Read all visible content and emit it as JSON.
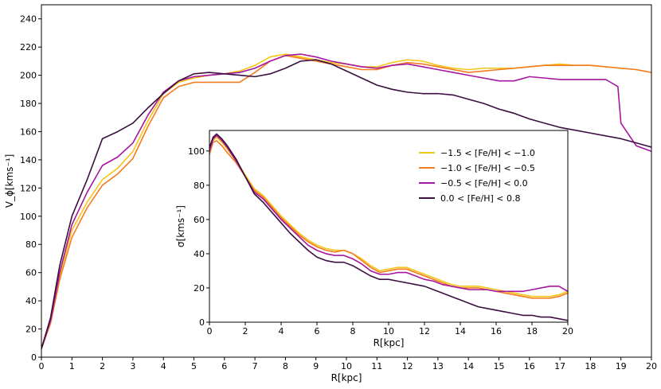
{
  "chart_data": [
    {
      "type": "line",
      "name": "main-rotation-curve",
      "xlabel": "R[kpc]",
      "ylabel": "V_ϕ[kms⁻¹]",
      "xlim": [
        0,
        20
      ],
      "ylim": [
        0,
        250
      ],
      "xticks": [
        0,
        1,
        2,
        3,
        4,
        5,
        6,
        7,
        8,
        9,
        10,
        11,
        12,
        13,
        14,
        15,
        16,
        17,
        18,
        19,
        20
      ],
      "yticks": [
        0,
        20,
        40,
        60,
        80,
        100,
        120,
        140,
        160,
        180,
        200,
        220,
        240
      ],
      "series": [
        {
          "name": "−1.5 < [Fe/H] < −1.0",
          "color": "#f5c518",
          "x": [
            0,
            0.3,
            0.6,
            1.0,
            1.5,
            2.0,
            2.5,
            3.0,
            3.5,
            4.0,
            4.5,
            5.0,
            5.5,
            6.0,
            6.5,
            7.0,
            7.5,
            8.0,
            8.5,
            9.0,
            9.5,
            10.0,
            10.5,
            11.0,
            11.5,
            12.0,
            12.5,
            13.0,
            13.5,
            14.0,
            14.5,
            15.0,
            15.5,
            16.0,
            16.5,
            17.0,
            17.5,
            18.0,
            18.5,
            19.0,
            19.5,
            20.0
          ],
          "y": [
            6,
            25,
            58,
            90,
            110,
            126,
            134,
            146,
            168,
            187,
            195,
            198,
            200,
            201,
            203,
            207,
            213,
            215,
            213,
            211,
            209,
            208,
            206,
            206,
            209,
            211,
            210,
            207,
            205,
            204,
            205,
            205,
            205,
            206,
            207,
            208,
            207,
            207,
            206,
            205,
            204,
            202
          ]
        },
        {
          "name": "−1.0 < [Fe/H] < −0.5",
          "color": "#f47c20",
          "x": [
            0,
            0.3,
            0.6,
            1.0,
            1.5,
            2.0,
            2.5,
            3.0,
            3.5,
            4.0,
            4.5,
            5.0,
            5.5,
            6.0,
            6.5,
            7.0,
            7.5,
            8.0,
            8.5,
            9.0,
            9.5,
            10.0,
            10.5,
            11.0,
            11.5,
            12.0,
            12.5,
            13.0,
            13.5,
            14.0,
            14.5,
            15.0,
            15.5,
            16.0,
            16.5,
            17.0,
            17.5,
            18.0,
            18.5,
            19.0,
            19.5,
            20.0
          ],
          "y": [
            6,
            24,
            55,
            85,
            106,
            122,
            130,
            141,
            164,
            184,
            192,
            195,
            195,
            195,
            195,
            202,
            210,
            214,
            212,
            210,
            208,
            206,
            204,
            204,
            207,
            209,
            208,
            206,
            204,
            202,
            203,
            204,
            205,
            206,
            207,
            207,
            207,
            207,
            206,
            205,
            204,
            202
          ]
        },
        {
          "name": "−0.5 < [Fe/H] < 0.0",
          "color": "#a4179e",
          "x": [
            0,
            0.3,
            0.6,
            1.0,
            1.5,
            2.0,
            2.5,
            3.0,
            3.5,
            4.0,
            4.5,
            5.0,
            5.5,
            6.0,
            6.5,
            7.0,
            7.5,
            8.0,
            8.5,
            9.0,
            9.5,
            10.0,
            10.5,
            11.0,
            11.5,
            12.0,
            12.5,
            13.0,
            13.5,
            14.0,
            14.5,
            15.0,
            15.5,
            16.0,
            16.5,
            17.0,
            17.5,
            18.0,
            18.5,
            18.9,
            19.0,
            19.5,
            20.0
          ],
          "y": [
            6,
            26,
            60,
            94,
            117,
            136,
            142,
            152,
            172,
            188,
            196,
            199,
            200,
            201,
            202,
            205,
            210,
            214,
            215,
            213,
            210,
            208,
            206,
            205,
            207,
            208,
            206,
            204,
            202,
            200,
            198,
            196,
            196,
            199,
            198,
            197,
            197,
            197,
            197,
            192,
            166,
            150,
            146
          ]
        },
        {
          "name": "0.0 < [Fe/H] < 0.8",
          "color": "#3b0f3f",
          "x": [
            0,
            0.3,
            0.6,
            1.0,
            1.5,
            2.0,
            2.5,
            3.0,
            3.5,
            4.0,
            4.5,
            5.0,
            5.5,
            6.0,
            6.5,
            7.0,
            7.5,
            8.0,
            8.5,
            9.0,
            9.5,
            10.0,
            10.5,
            11.0,
            11.5,
            12.0,
            12.5,
            13.0,
            13.5,
            14.0,
            14.5,
            15.0,
            15.5,
            16.0,
            16.5,
            17.0,
            17.5,
            18.0,
            18.5,
            19.0,
            19.5,
            20.0
          ],
          "y": [
            6,
            28,
            65,
            100,
            126,
            155,
            160,
            166,
            177,
            187,
            196,
            201,
            202,
            201,
            200,
            199,
            201,
            205,
            210,
            211,
            208,
            203,
            198,
            193,
            190,
            188,
            187,
            187,
            186,
            183,
            180,
            176,
            173,
            169,
            166,
            163,
            161,
            159,
            157,
            155,
            152,
            149
          ]
        }
      ]
    },
    {
      "type": "line",
      "name": "inset-dispersion",
      "xlabel": "R[kpc]",
      "ylabel": "σ[kms⁻¹]",
      "xlim": [
        0,
        20
      ],
      "ylim": [
        0,
        112
      ],
      "xticks": [
        0,
        2,
        4,
        6,
        8,
        10,
        12,
        14,
        16,
        18,
        20
      ],
      "yticks": [
        0,
        20,
        40,
        60,
        80,
        100
      ],
      "legend_location": "upper-right",
      "series": [
        {
          "name": "−1.5 < [Fe/H] < −1.0",
          "color": "#f5c518",
          "x": [
            0,
            0.2,
            0.4,
            0.7,
            1.0,
            1.5,
            2.0,
            2.5,
            3.0,
            3.5,
            4.0,
            4.5,
            5.0,
            5.5,
            6.0,
            6.5,
            7.0,
            7.5,
            8.0,
            8.5,
            9.0,
            9.5,
            10.0,
            10.5,
            11.0,
            11.5,
            12.0,
            12.5,
            13.0,
            13.5,
            14.0,
            14.5,
            15.0,
            15.5,
            16.0,
            16.5,
            17.0,
            17.5,
            18.0,
            18.5,
            19.0,
            19.5,
            20.0
          ],
          "y": [
            99,
            106,
            108,
            105,
            101,
            94,
            86,
            78,
            74,
            68,
            62,
            57,
            52,
            48,
            45,
            43,
            42,
            42,
            40,
            37,
            33,
            30,
            31,
            32,
            32,
            30,
            28,
            26,
            24,
            22,
            21,
            21,
            21,
            20,
            19,
            18,
            17,
            16,
            15,
            15,
            15,
            16,
            18
          ]
        },
        {
          "name": "−1.0 < [Fe/H] < −0.5",
          "color": "#f47c20",
          "x": [
            0,
            0.2,
            0.4,
            0.7,
            1.0,
            1.5,
            2.0,
            2.5,
            3.0,
            3.5,
            4.0,
            4.5,
            5.0,
            5.5,
            6.0,
            6.5,
            7.0,
            7.5,
            8.0,
            8.5,
            9.0,
            9.5,
            10.0,
            10.5,
            11.0,
            11.5,
            12.0,
            12.5,
            13.0,
            13.5,
            14.0,
            14.5,
            15.0,
            15.5,
            16.0,
            16.5,
            17.0,
            17.5,
            18.0,
            18.5,
            19.0,
            19.5,
            20.0
          ],
          "y": [
            98,
            105,
            106,
            103,
            99,
            93,
            85,
            77,
            73,
            67,
            61,
            56,
            51,
            47,
            44,
            42,
            41,
            42,
            40,
            36,
            32,
            29,
            30,
            31,
            31,
            29,
            27,
            25,
            23,
            21,
            20,
            20,
            20,
            19,
            18,
            17,
            16,
            15,
            14,
            14,
            14,
            15,
            17
          ]
        },
        {
          "name": "−0.5 < [Fe/H] < 0.0",
          "color": "#a4179e",
          "x": [
            0,
            0.2,
            0.4,
            0.7,
            1.0,
            1.5,
            2.0,
            2.5,
            3.0,
            3.5,
            4.0,
            4.5,
            5.0,
            5.5,
            6.0,
            6.5,
            7.0,
            7.5,
            8.0,
            8.5,
            9.0,
            9.5,
            10.0,
            10.5,
            11.0,
            11.5,
            12.0,
            12.5,
            13.0,
            13.5,
            14.0,
            14.5,
            15.0,
            15.5,
            16.0,
            16.5,
            17.0,
            17.5,
            18.0,
            18.5,
            19.0,
            19.5,
            20.0
          ],
          "y": [
            100,
            107,
            109,
            106,
            102,
            94,
            85,
            76,
            72,
            66,
            60,
            55,
            50,
            45,
            42,
            40,
            39,
            39,
            37,
            34,
            30,
            28,
            28,
            29,
            29,
            27,
            25,
            24,
            22,
            21,
            20,
            19,
            19,
            19,
            18,
            18,
            18,
            18,
            19,
            20,
            21,
            21,
            18
          ]
        },
        {
          "name": "0.0 < [Fe/H] < 0.8",
          "color": "#3b0f3f",
          "x": [
            0,
            0.2,
            0.4,
            0.7,
            1.0,
            1.5,
            2.0,
            2.5,
            3.0,
            3.5,
            4.0,
            4.5,
            5.0,
            5.5,
            6.0,
            6.5,
            7.0,
            7.5,
            8.0,
            8.5,
            9.0,
            9.5,
            10.0,
            10.5,
            11.0,
            11.5,
            12.0,
            12.5,
            13.0,
            13.5,
            14.0,
            14.5,
            15.0,
            15.5,
            16.0,
            16.5,
            17.0,
            17.5,
            18.0,
            18.5,
            19.0,
            19.5,
            20.0
          ],
          "y": [
            102,
            108,
            110,
            107,
            103,
            95,
            85,
            75,
            70,
            64,
            58,
            52,
            47,
            42,
            38,
            36,
            35,
            35,
            33,
            30,
            27,
            25,
            25,
            24,
            23,
            22,
            21,
            19,
            17,
            15,
            13,
            11,
            9,
            8,
            7,
            6,
            5,
            4,
            4,
            3,
            3,
            2,
            1
          ]
        }
      ]
    }
  ]
}
